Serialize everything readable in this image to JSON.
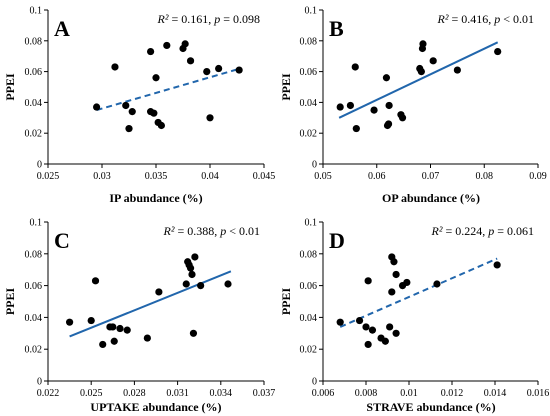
{
  "chart_data": [
    {
      "type": "scatter",
      "panel_label": "A",
      "stat_r2_label": "R²",
      "stat_r2_value": "= 0.161,",
      "stat_p_label": "p",
      "stat_p_value": "= 0.098",
      "xlabel": "IP abundance (%)",
      "ylabel": "PPEI",
      "xlim": [
        0.025,
        0.045
      ],
      "ylim": [
        0,
        0.1
      ],
      "xticks": [
        0.025,
        0.03,
        0.035,
        0.04,
        0.045
      ],
      "xtick_labels": [
        "0.025",
        "0.03",
        "0.035",
        "0.04",
        "0.045"
      ],
      "yticks": [
        0,
        0.02,
        0.04,
        0.06,
        0.08,
        0.1
      ],
      "ytick_labels": [
        "0",
        "0.02",
        "0.04",
        "0.06",
        "0.08",
        "0.1"
      ],
      "fit_style": "dashed",
      "fit": {
        "x": [
          0.0295,
          0.0428
        ],
        "y": [
          0.035,
          0.062
        ]
      },
      "x": [
        0.0295,
        0.0312,
        0.0322,
        0.0325,
        0.0328,
        0.0345,
        0.0345,
        0.0348,
        0.035,
        0.0352,
        0.0355,
        0.036,
        0.0375,
        0.0377,
        0.0382,
        0.0397,
        0.04,
        0.0408,
        0.0427
      ],
      "y": [
        0.037,
        0.063,
        0.038,
        0.023,
        0.034,
        0.073,
        0.034,
        0.033,
        0.056,
        0.027,
        0.025,
        0.077,
        0.075,
        0.078,
        0.067,
        0.06,
        0.03,
        0.062,
        0.061
      ],
      "color": "#2166ac",
      "point_color": "#000000"
    },
    {
      "type": "scatter",
      "panel_label": "B",
      "stat_r2_label": "R²",
      "stat_r2_value": "= 0.416,",
      "stat_p_label": "p",
      "stat_p_value": "< 0.01",
      "xlabel": "OP abundance (%)",
      "ylabel": "PPEI",
      "xlim": [
        0.05,
        0.09
      ],
      "ylim": [
        0,
        0.1
      ],
      "xticks": [
        0.05,
        0.06,
        0.07,
        0.08,
        0.09
      ],
      "xtick_labels": [
        "0.05",
        "0.06",
        "0.07",
        "0.08",
        "0.09"
      ],
      "yticks": [
        0,
        0.02,
        0.04,
        0.06,
        0.08,
        0.1
      ],
      "ytick_labels": [
        "0",
        "0.02",
        "0.04",
        "0.06",
        "0.08",
        "0.1"
      ],
      "fit_style": "solid",
      "fit": {
        "x": [
          0.053,
          0.0825
        ],
        "y": [
          0.03,
          0.079
        ]
      },
      "x": [
        0.0532,
        0.0551,
        0.056,
        0.0562,
        0.0595,
        0.0618,
        0.062,
        0.0622,
        0.0623,
        0.0645,
        0.0648,
        0.068,
        0.0683,
        0.0685,
        0.0686,
        0.0705,
        0.075,
        0.0825
      ],
      "y": [
        0.037,
        0.038,
        0.063,
        0.023,
        0.035,
        0.056,
        0.025,
        0.026,
        0.038,
        0.032,
        0.03,
        0.062,
        0.06,
        0.075,
        0.078,
        0.067,
        0.061,
        0.073
      ],
      "color": "#2166ac",
      "point_color": "#000000"
    },
    {
      "type": "scatter",
      "panel_label": "C",
      "stat_r2_label": "R²",
      "stat_r2_value": "= 0.388,",
      "stat_p_label": "p",
      "stat_p_value": "< 0.01",
      "xlabel": "UPTAKE abundance (%)",
      "ylabel": "PPEI",
      "xlim": [
        0.022,
        0.037
      ],
      "ylim": [
        0,
        0.1
      ],
      "xticks": [
        0.022,
        0.025,
        0.028,
        0.031,
        0.034,
        0.037
      ],
      "xtick_labels": [
        "0.022",
        "0.025",
        "0.028",
        "0.031",
        "0.034",
        "0.037"
      ],
      "yticks": [
        0,
        0.02,
        0.04,
        0.06,
        0.08,
        0.1
      ],
      "ytick_labels": [
        "0",
        "0.02",
        "0.04",
        "0.06",
        "0.08",
        "0.1"
      ],
      "fit_style": "solid",
      "fit": {
        "x": [
          0.0235,
          0.0347
        ],
        "y": [
          0.028,
          0.069
        ]
      },
      "x": [
        0.0235,
        0.025,
        0.0253,
        0.0258,
        0.0263,
        0.0265,
        0.0266,
        0.027,
        0.0275,
        0.0289,
        0.0297,
        0.0316,
        0.0317,
        0.0318,
        0.0319,
        0.032,
        0.0321,
        0.0322,
        0.0326,
        0.0345
      ],
      "y": [
        0.037,
        0.038,
        0.063,
        0.023,
        0.034,
        0.034,
        0.025,
        0.033,
        0.032,
        0.027,
        0.056,
        0.061,
        0.075,
        0.073,
        0.071,
        0.067,
        0.03,
        0.078,
        0.06,
        0.061
      ],
      "color": "#2166ac",
      "point_color": "#000000"
    },
    {
      "type": "scatter",
      "panel_label": "D",
      "stat_r2_label": "R²",
      "stat_r2_value": "= 0.224,",
      "stat_p_label": "p",
      "stat_p_value": "= 0.061",
      "xlabel": "STRAVE abundance (%)",
      "ylabel": "PPEI",
      "xlim": [
        0.006,
        0.016
      ],
      "ylim": [
        0,
        0.1
      ],
      "xticks": [
        0.006,
        0.008,
        0.01,
        0.012,
        0.014,
        0.016
      ],
      "xtick_labels": [
        "0.006",
        "0.008",
        "0.01",
        "0.012",
        "0.014",
        "0.016"
      ],
      "yticks": [
        0,
        0.02,
        0.04,
        0.06,
        0.08,
        0.1
      ],
      "ytick_labels": [
        "0",
        "0.02",
        "0.04",
        "0.06",
        "0.08",
        "0.1"
      ],
      "fit_style": "dashed",
      "fit": {
        "x": [
          0.0068,
          0.0141
        ],
        "y": [
          0.034,
          0.077
        ]
      },
      "x": [
        0.0068,
        0.0077,
        0.008,
        0.0081,
        0.0081,
        0.0083,
        0.0087,
        0.0089,
        0.0091,
        0.0092,
        0.0092,
        0.0093,
        0.0094,
        0.0094,
        0.0097,
        0.0099,
        0.0113,
        0.0141
      ],
      "y": [
        0.037,
        0.038,
        0.034,
        0.023,
        0.063,
        0.032,
        0.027,
        0.025,
        0.034,
        0.056,
        0.078,
        0.075,
        0.067,
        0.03,
        0.06,
        0.062,
        0.061,
        0.073
      ],
      "color": "#2166ac",
      "point_color": "#000000"
    }
  ]
}
